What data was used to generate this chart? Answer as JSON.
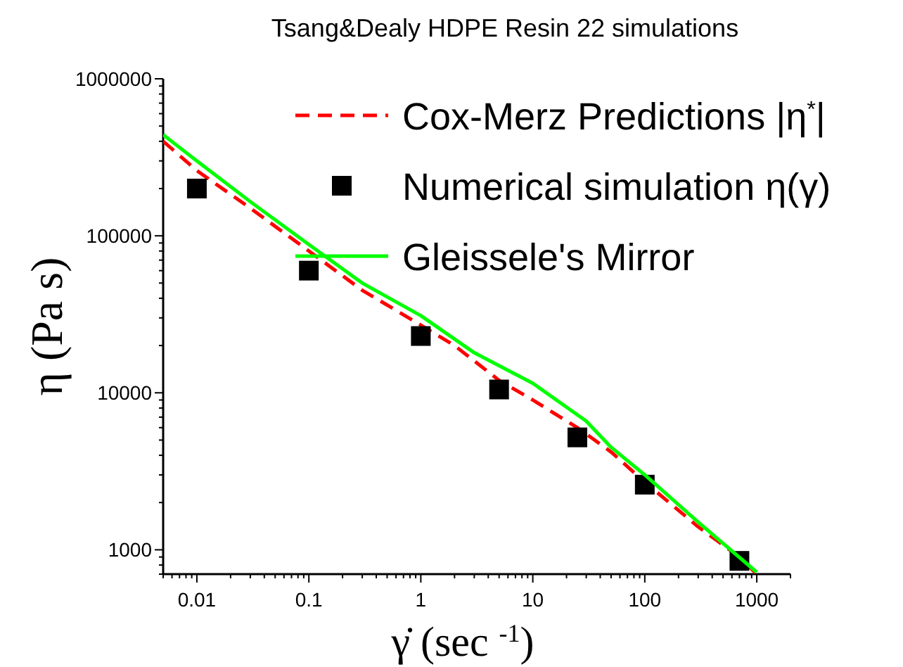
{
  "chart_data": {
    "type": "line",
    "title": "Tsang&Dealy HDPE Resin 22 simulations",
    "xlabel": "γ̇  (sec $^{-1}$)",
    "ylabel": "η  (Pa  s)",
    "log": "xy",
    "legend": "top right",
    "grid": false,
    "xlim": [
      0.005,
      2000
    ],
    "ylim": [
      700,
      1000000
    ],
    "xticks": [
      {
        "value": 0.005,
        "label": null
      },
      {
        "value": 0.006,
        "label": null
      },
      {
        "value": 0.007,
        "label": null
      },
      {
        "value": 0.008,
        "label": null
      },
      {
        "value": 0.009,
        "label": null
      },
      0.01,
      {
        "value": 0.02,
        "label": null
      },
      {
        "value": 0.03,
        "label": null
      },
      {
        "value": 0.04,
        "label": null
      },
      {
        "value": 0.05,
        "label": null
      },
      {
        "value": 0.06,
        "label": null
      },
      {
        "value": 0.07,
        "label": null
      },
      {
        "value": 0.08,
        "label": null
      },
      {
        "value": 0.09,
        "label": null
      },
      0.1,
      {
        "value": 0.2,
        "label": null
      },
      {
        "value": 0.3,
        "label": null
      },
      {
        "value": 0.4,
        "label": null
      },
      {
        "value": 0.5,
        "label": null
      },
      {
        "value": 0.6,
        "label": null
      },
      {
        "value": 0.7,
        "label": null
      },
      {
        "value": 0.8,
        "label": null
      },
      {
        "value": 0.9,
        "label": null
      },
      1,
      {
        "value": 2,
        "label": null
      },
      {
        "value": 3,
        "label": null
      },
      {
        "value": 4,
        "label": null
      },
      {
        "value": 5,
        "label": null
      },
      {
        "value": 6,
        "label": null
      },
      {
        "value": 7,
        "label": null
      },
      {
        "value": 8,
        "label": null
      },
      {
        "value": 9,
        "label": null
      },
      10,
      {
        "value": 20,
        "label": null
      },
      {
        "value": 30,
        "label": null
      },
      {
        "value": 40,
        "label": null
      },
      {
        "value": 50,
        "label": null
      },
      {
        "value": 60,
        "label": null
      },
      {
        "value": 70,
        "label": null
      },
      {
        "value": 80,
        "label": null
      },
      {
        "value": 90,
        "label": null
      },
      100,
      {
        "value": 200,
        "label": null
      },
      {
        "value": 300,
        "label": null
      },
      {
        "value": 400,
        "label": null
      },
      {
        "value": 500,
        "label": null
      },
      {
        "value": 600,
        "label": null
      },
      {
        "value": 700,
        "label": null
      },
      {
        "value": 800,
        "label": null
      },
      {
        "value": 900,
        "label": null
      },
      1000,
      {
        "value": 2000,
        "label": null
      }
    ],
    "yticks": [
      {
        "value": 700,
        "label": null
      },
      {
        "value": 800,
        "label": null
      },
      {
        "value": 900,
        "label": null
      },
      1000,
      {
        "value": 2000,
        "label": null
      },
      {
        "value": 3000,
        "label": null
      },
      {
        "value": 4000,
        "label": null
      },
      {
        "value": 5000,
        "label": null
      },
      {
        "value": 6000,
        "label": null
      },
      {
        "value": 7000,
        "label": null
      },
      {
        "value": 8000,
        "label": null
      },
      {
        "value": 9000,
        "label": null
      },
      10000,
      {
        "value": 20000,
        "label": null
      },
      {
        "value": 30000,
        "label": null
      },
      {
        "value": 40000,
        "label": null
      },
      {
        "value": 50000,
        "label": null
      },
      {
        "value": 60000,
        "label": null
      },
      {
        "value": 70000,
        "label": null
      },
      {
        "value": 80000,
        "label": null
      },
      {
        "value": 90000,
        "label": null
      },
      100000,
      {
        "value": 200000,
        "label": null
      },
      {
        "value": 300000,
        "label": null
      },
      {
        "value": 400000,
        "label": null
      },
      {
        "value": 500000,
        "label": null
      },
      {
        "value": 600000,
        "label": null
      },
      {
        "value": 700000,
        "label": null
      },
      {
        "value": 800000,
        "label": null
      },
      {
        "value": 900000,
        "label": null
      },
      1000000
    ],
    "series": [
      {
        "name": "Cox-Merz Predictions |η$^{*}$|",
        "line_style": "dashed",
        "marker": "none",
        "color": "#ff0000",
        "x": [
          0.005,
          0.01,
          0.03,
          0.1,
          0.3,
          1,
          2,
          5,
          10,
          25,
          50,
          100,
          300,
          700,
          1000
        ],
        "values": [
          400000,
          260000,
          150000,
          80000,
          45000,
          27000,
          20000,
          12000,
          9000,
          6000,
          4200,
          2700,
          1400,
          900,
          700
        ]
      },
      {
        "name": "Numerical simulation η(γ)",
        "type": "scatter",
        "marker": "square",
        "color": "#000000",
        "x": [
          0.01,
          0.1,
          1,
          5,
          25,
          100,
          700
        ],
        "values": [
          200000,
          60000,
          23000,
          10500,
          5200,
          2600,
          850
        ]
      },
      {
        "name": "Gleissele's Mirror",
        "line_style": "solid",
        "marker": "none",
        "color": "#00ff00",
        "x": [
          0.005,
          0.01,
          0.03,
          0.1,
          0.3,
          1,
          3,
          10,
          30,
          50,
          100,
          300,
          1000
        ],
        "values": [
          440000,
          300000,
          165000,
          88000,
          50000,
          31000,
          18000,
          11500,
          6600,
          4500,
          3000,
          1500,
          720
        ]
      }
    ]
  }
}
